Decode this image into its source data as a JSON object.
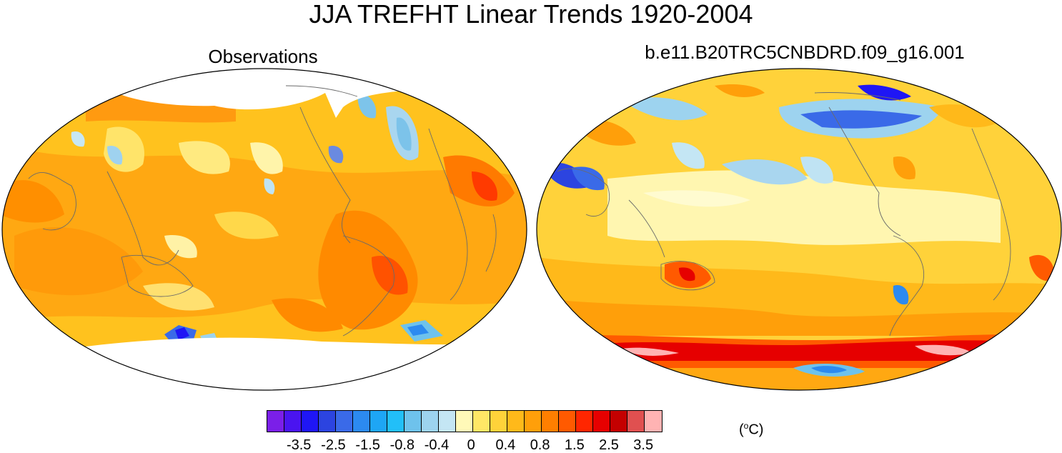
{
  "title": "JJA TREFHT Linear Trends 1920-2004",
  "panels": [
    {
      "id": "left",
      "title": "Observations"
    },
    {
      "id": "right",
      "title": "b.e11.B20TRC5CNBDRD.f09_g16.001"
    }
  ],
  "colorbar": {
    "colors": [
      "#7b1fe8",
      "#4a14f0",
      "#1f16f5",
      "#2c44e0",
      "#3a6ae8",
      "#2c8af0",
      "#1ea6f5",
      "#22bff8",
      "#6ec2ec",
      "#9dd3ef",
      "#c4e6f4",
      "#fff9b8",
      "#ffe766",
      "#ffd23a",
      "#ffb91a",
      "#ff9f0a",
      "#ff7f00",
      "#ff5a00",
      "#ff2600",
      "#e60000",
      "#c40000",
      "#e05050",
      "#ffb3b3"
    ],
    "tick_labels": [
      "-3.5",
      "-2.5",
      "-1.5",
      "-0.8",
      "-0.4",
      "0",
      "0.4",
      "0.8",
      "1.5",
      "2.5",
      "3.5"
    ],
    "units_label": "(°C)"
  }
}
